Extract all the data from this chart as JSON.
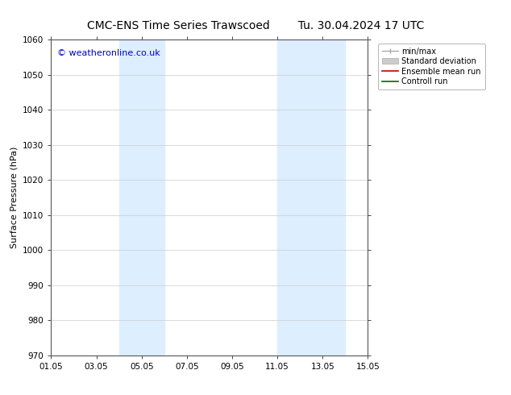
{
  "title_left": "CMC-ENS Time Series Trawscoed",
  "title_right": "Tu. 30.04.2024 17 UTC",
  "ylabel": "Surface Pressure (hPa)",
  "ylim": [
    970,
    1060
  ],
  "yticks": [
    970,
    980,
    990,
    1000,
    1010,
    1020,
    1030,
    1040,
    1050,
    1060
  ],
  "xtick_labels": [
    "01.05",
    "03.05",
    "05.05",
    "07.05",
    "09.05",
    "11.05",
    "13.05",
    "15.05"
  ],
  "xtick_positions": [
    0,
    2,
    4,
    6,
    8,
    10,
    12,
    14
  ],
  "x_num_days": 14,
  "shaded_bands": [
    {
      "x_start": 3.0,
      "x_end": 5.0
    },
    {
      "x_start": 10.0,
      "x_end": 13.0
    }
  ],
  "shaded_color": "#ddeeff",
  "background_color": "#ffffff",
  "plot_bg_color": "#ffffff",
  "watermark_text": "© weatheronline.co.uk",
  "watermark_color": "#0000cc",
  "watermark_fontsize": 8,
  "title_fontsize": 10,
  "axis_label_fontsize": 8,
  "tick_fontsize": 7.5
}
